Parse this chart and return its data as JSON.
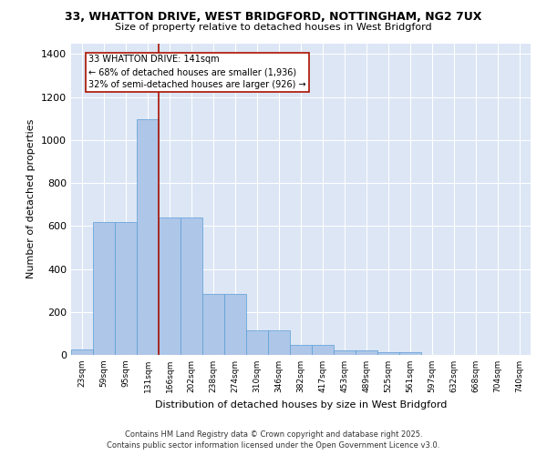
{
  "title1": "33, WHATTON DRIVE, WEST BRIDGFORD, NOTTINGHAM, NG2 7UX",
  "title2": "Size of property relative to detached houses in West Bridgford",
  "xlabel": "Distribution of detached houses by size in West Bridgford",
  "ylabel": "Number of detached properties",
  "bar_labels": [
    "23sqm",
    "59sqm",
    "95sqm",
    "131sqm",
    "166sqm",
    "202sqm",
    "238sqm",
    "274sqm",
    "310sqm",
    "346sqm",
    "382sqm",
    "417sqm",
    "453sqm",
    "489sqm",
    "525sqm",
    "561sqm",
    "597sqm",
    "632sqm",
    "668sqm",
    "704sqm",
    "740sqm"
  ],
  "bar_values": [
    27,
    620,
    620,
    1095,
    640,
    640,
    285,
    285,
    115,
    115,
    47,
    47,
    20,
    20,
    12,
    12,
    0,
    0,
    0,
    0,
    0
  ],
  "bar_color": "#aec6e8",
  "bar_edge_color": "#5a9ed6",
  "background_color": "#dce6f5",
  "grid_color": "#ffffff",
  "vline_color": "#aa1100",
  "annotation_text": "33 WHATTON DRIVE: 141sqm\n← 68% of detached houses are smaller (1,936)\n32% of semi-detached houses are larger (926) →",
  "annotation_box_color": "#ffffff",
  "annotation_edge_color": "#aa1100",
  "ylim": [
    0,
    1450
  ],
  "yticks": [
    0,
    200,
    400,
    600,
    800,
    1000,
    1200,
    1400
  ],
  "footer1": "Contains HM Land Registry data © Crown copyright and database right 2025.",
  "footer2": "Contains public sector information licensed under the Open Government Licence v3.0."
}
